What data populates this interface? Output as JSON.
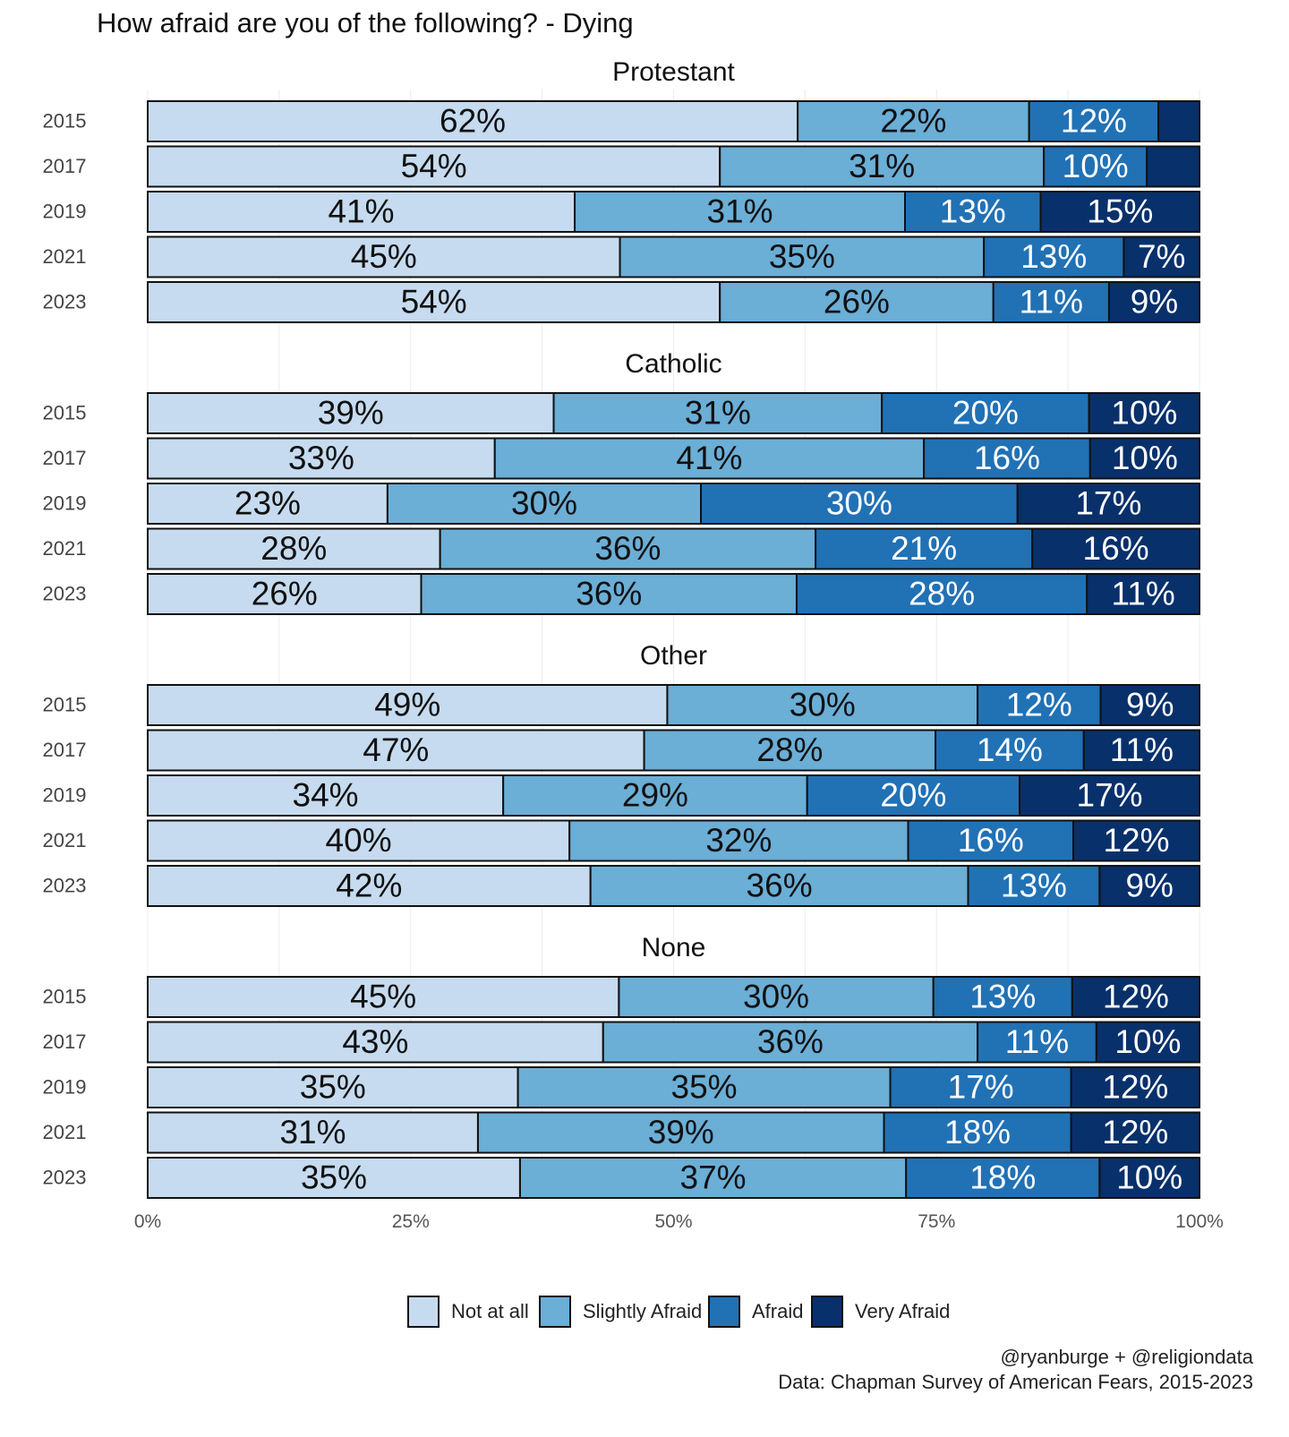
{
  "chart_data": {
    "type": "bar",
    "orientation": "horizontal",
    "stacked": "percent",
    "title": "How afraid are you of the following? - Dying",
    "categories": [
      "2015",
      "2017",
      "2019",
      "2021",
      "2023"
    ],
    "x_ticks": [
      {
        "value": 0,
        "label": "0%"
      },
      {
        "value": 25,
        "label": "25%"
      },
      {
        "value": 50,
        "label": "50%"
      },
      {
        "value": 75,
        "label": "75%"
      },
      {
        "value": 100,
        "label": "100%"
      }
    ],
    "xlim": [
      0,
      100
    ],
    "grid": true,
    "legend_position": "bottom",
    "series": [
      {
        "name": "Not at all",
        "color": "#c6dbef",
        "label_color": "#111111"
      },
      {
        "name": "Slightly Afraid",
        "color": "#6baed6",
        "label_color": "#111111"
      },
      {
        "name": "Afraid",
        "color": "#2171b5",
        "label_color": "#ffffff"
      },
      {
        "name": "Very Afraid",
        "color": "#08306b",
        "label_color": "#ffffff"
      }
    ],
    "facets": [
      {
        "title": "Protestant",
        "rows": [
          {
            "year": "2015",
            "values": [
              61.8,
              22,
              12.3,
              3.9
            ],
            "labels": [
              "62%",
              "22%",
              "12%",
              ""
            ]
          },
          {
            "year": "2017",
            "values": [
              54.4,
              30.8,
              9.8,
              5.0
            ],
            "labels": [
              "54%",
              "31%",
              "10%",
              ""
            ]
          },
          {
            "year": "2019",
            "values": [
              40.6,
              31.4,
              12.9,
              15.1
            ],
            "labels": [
              "41%",
              "31%",
              "13%",
              "15%"
            ]
          },
          {
            "year": "2021",
            "values": [
              44.9,
              34.6,
              13.3,
              7.2
            ],
            "labels": [
              "45%",
              "35%",
              "13%",
              "7%"
            ]
          },
          {
            "year": "2023",
            "values": [
              54.4,
              26,
              11,
              8.6
            ],
            "labels": [
              "54%",
              "26%",
              "11%",
              "9%"
            ]
          }
        ]
      },
      {
        "title": "Catholic",
        "rows": [
          {
            "year": "2015",
            "values": [
              38.6,
              31.2,
              19.7,
              10.5
            ],
            "labels": [
              "39%",
              "31%",
              "20%",
              "10%"
            ]
          },
          {
            "year": "2017",
            "values": [
              33,
              40.8,
              15.8,
              10.4
            ],
            "labels": [
              "33%",
              "41%",
              "16%",
              "10%"
            ]
          },
          {
            "year": "2019",
            "values": [
              22.8,
              29.8,
              30.1,
              17.3
            ],
            "labels": [
              "23%",
              "30%",
              "30%",
              "17%"
            ]
          },
          {
            "year": "2021",
            "values": [
              27.8,
              35.7,
              20.6,
              15.9
            ],
            "labels": [
              "28%",
              "36%",
              "21%",
              "16%"
            ]
          },
          {
            "year": "2023",
            "values": [
              26,
              35.7,
              27.6,
              10.7
            ],
            "labels": [
              "26%",
              "36%",
              "28%",
              "11%"
            ]
          }
        ]
      },
      {
        "title": "Other",
        "rows": [
          {
            "year": "2015",
            "values": [
              49.4,
              29.5,
              11.7,
              9.4
            ],
            "labels": [
              "49%",
              "30%",
              "12%",
              "9%"
            ]
          },
          {
            "year": "2017",
            "values": [
              47.2,
              27.7,
              14.1,
              11
            ],
            "labels": [
              "47%",
              "28%",
              "14%",
              "11%"
            ]
          },
          {
            "year": "2019",
            "values": [
              33.8,
              28.9,
              20.2,
              17.1
            ],
            "labels": [
              "34%",
              "29%",
              "20%",
              "17%"
            ]
          },
          {
            "year": "2021",
            "values": [
              40.1,
              32.2,
              15.7,
              12
            ],
            "labels": [
              "40%",
              "32%",
              "16%",
              "12%"
            ]
          },
          {
            "year": "2023",
            "values": [
              42.1,
              35.9,
              12.5,
              9.5
            ],
            "labels": [
              "42%",
              "36%",
              "13%",
              "9%"
            ]
          }
        ]
      },
      {
        "title": "None",
        "rows": [
          {
            "year": "2015",
            "values": [
              44.8,
              29.9,
              13.2,
              12.1
            ],
            "labels": [
              "45%",
              "30%",
              "13%",
              "12%"
            ]
          },
          {
            "year": "2017",
            "values": [
              43.3,
              35.6,
              11.3,
              9.8
            ],
            "labels": [
              "43%",
              "36%",
              "11%",
              "10%"
            ]
          },
          {
            "year": "2019",
            "values": [
              35.2,
              35.4,
              17.2,
              12.2
            ],
            "labels": [
              "35%",
              "35%",
              "17%",
              "12%"
            ]
          },
          {
            "year": "2021",
            "values": [
              31.4,
              38.6,
              17.8,
              12.2
            ],
            "labels": [
              "31%",
              "39%",
              "18%",
              "12%"
            ]
          },
          {
            "year": "2023",
            "values": [
              35.4,
              36.7,
              18.4,
              9.5
            ],
            "labels": [
              "35%",
              "37%",
              "18%",
              "10%"
            ]
          }
        ]
      }
    ],
    "caption": [
      "@ryanburge + @religiondata",
      "Data: Chapman Survey of American Fears, 2015-2023"
    ]
  }
}
